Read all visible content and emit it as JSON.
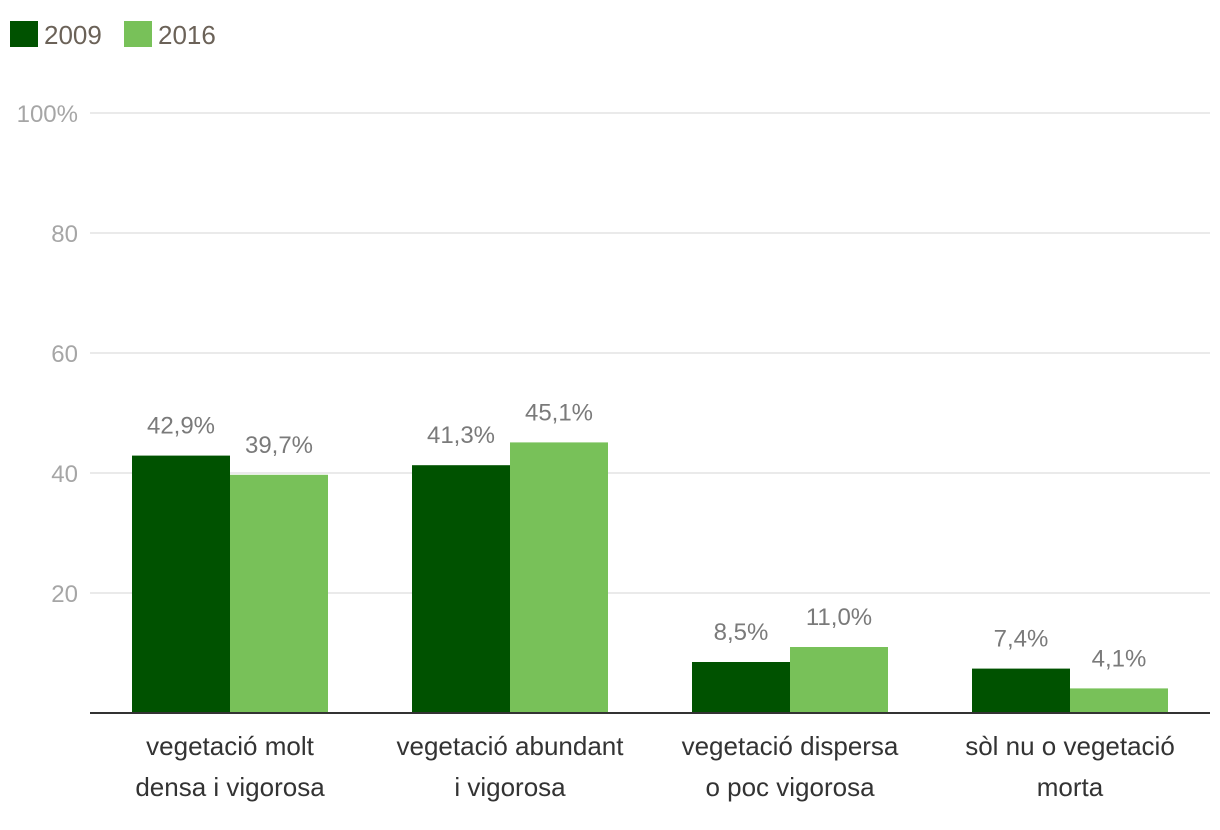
{
  "chart_data": {
    "type": "bar",
    "title": "",
    "xlabel": "",
    "ylabel": "",
    "ylim": [
      0,
      100
    ],
    "yticks": [
      20,
      40,
      60,
      80,
      100
    ],
    "ytick_labels": [
      "20",
      "40",
      "60",
      "80",
      "100%"
    ],
    "grid": true,
    "legend_position": "top-left",
    "categories": [
      [
        "vegetació molt",
        "densa i vigorosa"
      ],
      [
        "vegetació abundant",
        "i vigorosa"
      ],
      [
        "vegetació dispersa",
        "o poc vigorosa"
      ],
      [
        "sòl nu o vegetació",
        "morta"
      ]
    ],
    "series": [
      {
        "name": "2009",
        "color": "#005200",
        "values": [
          42.9,
          41.3,
          8.5,
          7.4
        ],
        "labels": [
          "42,9%",
          "41,3%",
          "8,5%",
          "7,4%"
        ]
      },
      {
        "name": "2016",
        "color": "#78c159",
        "values": [
          39.7,
          45.1,
          11.0,
          4.1
        ],
        "labels": [
          "39,7%",
          "45,1%",
          "11,0%",
          "4,1%"
        ]
      }
    ]
  },
  "colors": {
    "grid": "#e3e3e3",
    "axis": "#333333"
  }
}
